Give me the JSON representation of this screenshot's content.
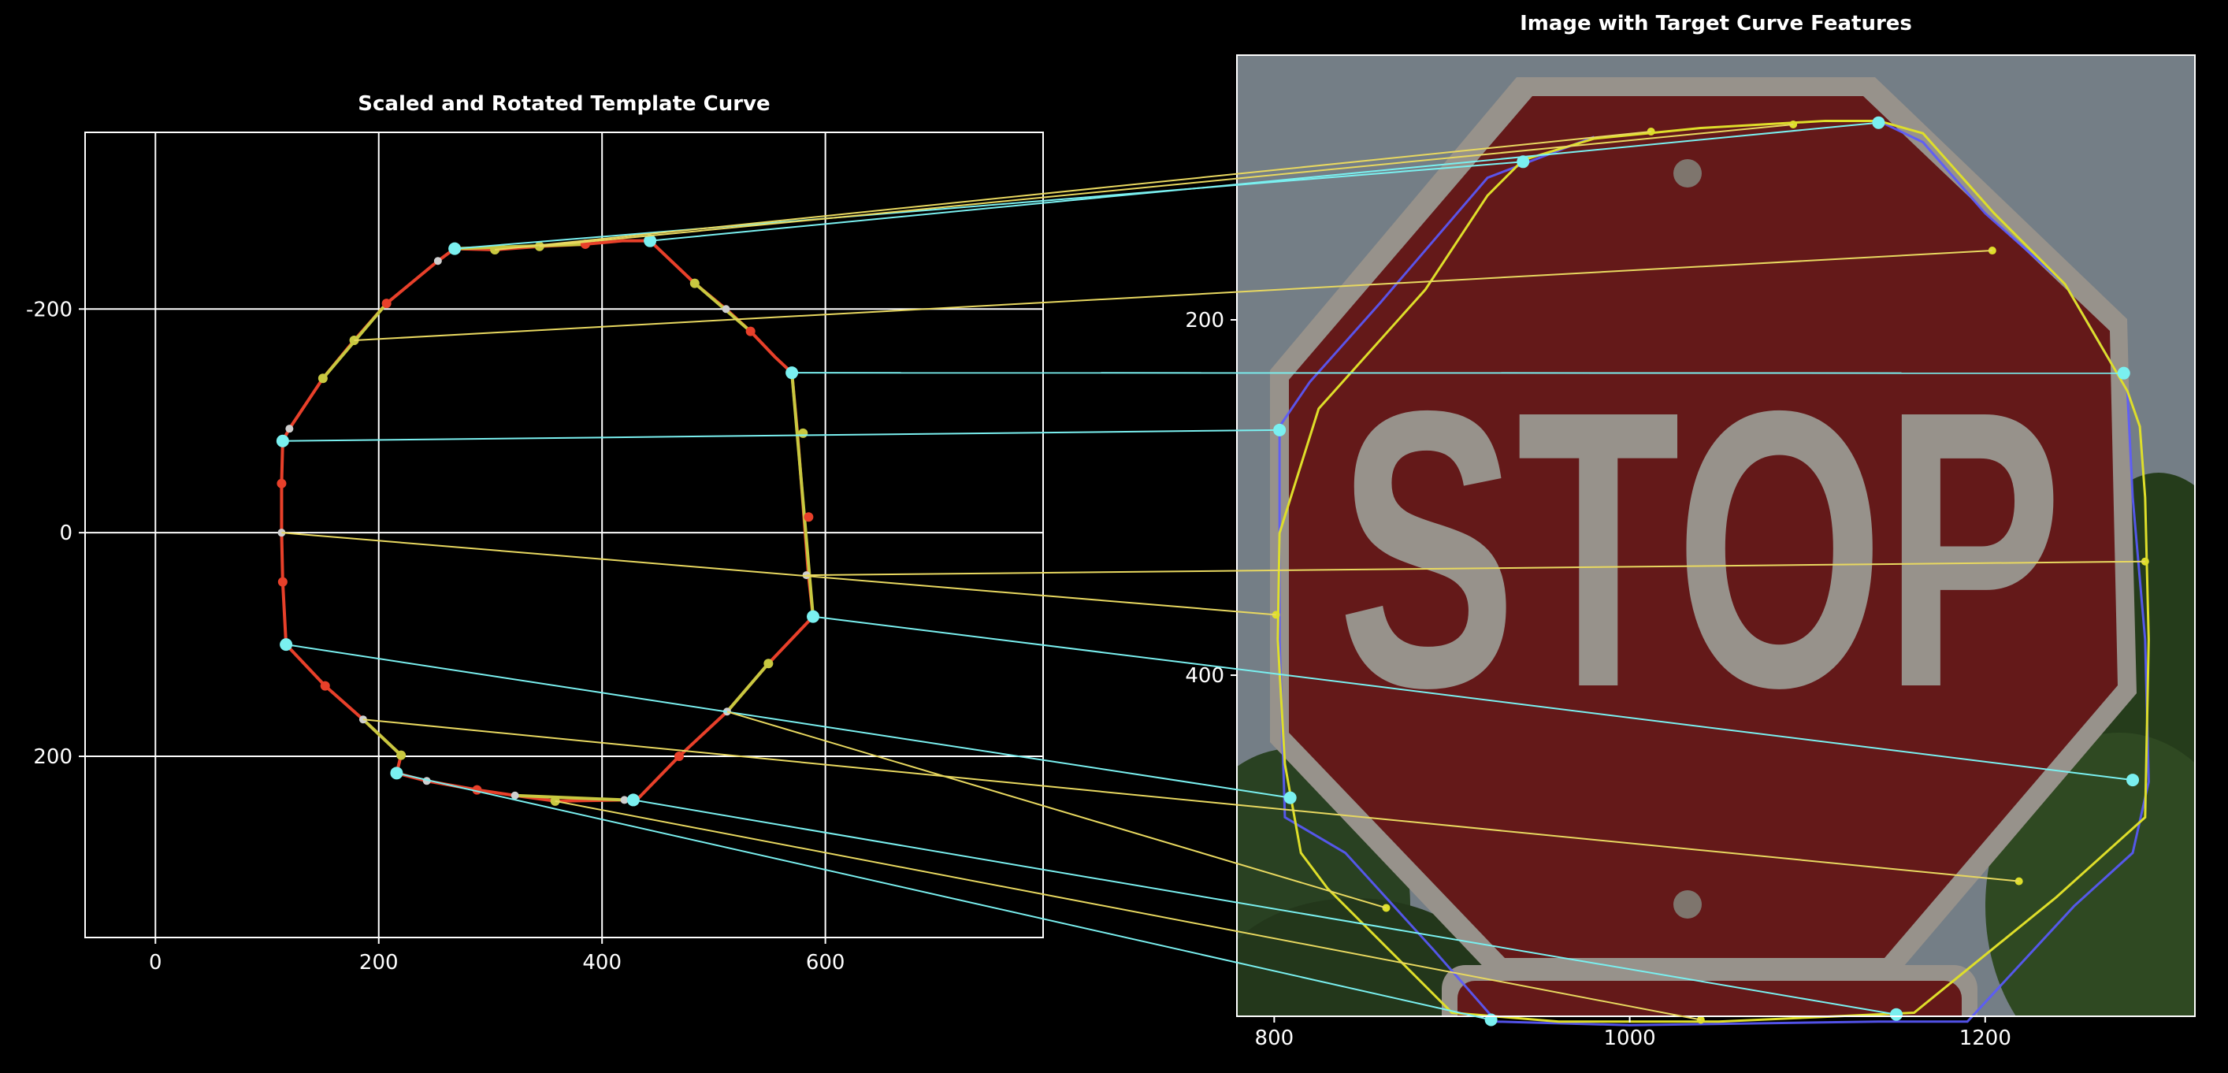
{
  "background": "#000000",
  "colors": {
    "template_curve": "#e8402a",
    "template_segment": "#c8c840",
    "target_curve_yellow": "#dede2a",
    "target_curve_blue": "#5a5aff",
    "match_line_anchor": "#7af0f0",
    "match_line_mid": "#e8d860",
    "grid": "#ffffff",
    "sign_red": "#7a1f1f",
    "sign_border": "#b9b2aa",
    "sky": "#8e9aa4",
    "foliage": "#2e4a22"
  },
  "chart_data": [
    {
      "type": "line",
      "title": "Scaled and Rotated Template Curve",
      "xlabel": "",
      "ylabel": "",
      "xlim": [
        -63,
        795
      ],
      "ylim": [
        362,
        -358
      ],
      "y_inverted": true,
      "grid": true,
      "xticks": [
        0,
        200,
        400,
        600
      ],
      "xtick_labels": [
        "0",
        "200",
        "400",
        "600"
      ],
      "yticks": [
        -200,
        0,
        200
      ],
      "ytick_labels": [
        "-200",
        "0",
        "200"
      ],
      "curve": [
        [
          268,
          -254
        ],
        [
          253,
          -243
        ],
        [
          207,
          -205
        ],
        [
          178,
          -172
        ],
        [
          150,
          -138
        ],
        [
          120,
          -93
        ],
        [
          114,
          -82
        ],
        [
          113,
          -44
        ],
        [
          113,
          0
        ],
        [
          114,
          44
        ],
        [
          117,
          100
        ],
        [
          152,
          137
        ],
        [
          186,
          167
        ],
        [
          220,
          199
        ],
        [
          216,
          215
        ],
        [
          243,
          222
        ],
        [
          288,
          230
        ],
        [
          322,
          235
        ],
        [
          358,
          240
        ],
        [
          420,
          239
        ],
        [
          432,
          238
        ],
        [
          469,
          200
        ],
        [
          512,
          160
        ],
        [
          549,
          117
        ],
        [
          589,
          75
        ],
        [
          585,
          40
        ],
        [
          583,
          14
        ],
        [
          579,
          -38
        ],
        [
          575,
          -89
        ],
        [
          570,
          -143
        ],
        [
          555,
          -157
        ],
        [
          533,
          -180
        ],
        [
          511,
          -200
        ],
        [
          483,
          -223
        ],
        [
          443,
          -261
        ],
        [
          418,
          -261
        ],
        [
          385,
          -258
        ],
        [
          344,
          -256
        ],
        [
          304,
          -253
        ],
        [
          268,
          -254
        ]
      ],
      "anchor_points": [
        [
          268,
          -254
        ],
        [
          443,
          -261
        ],
        [
          570,
          -143
        ],
        [
          114,
          -82
        ],
        [
          589,
          75
        ],
        [
          117,
          100
        ],
        [
          216,
          215
        ],
        [
          428,
          239
        ]
      ],
      "red_points": [
        [
          207,
          -205
        ],
        [
          113,
          -44
        ],
        [
          114,
          44
        ],
        [
          152,
          137
        ],
        [
          288,
          230
        ],
        [
          469,
          200
        ],
        [
          533,
          -180
        ],
        [
          585,
          -14
        ],
        [
          385,
          -258
        ]
      ],
      "yellow_points": [
        [
          178,
          -172
        ],
        [
          150,
          -138
        ],
        [
          220,
          199
        ],
        [
          358,
          240
        ],
        [
          549,
          117
        ],
        [
          580,
          -89
        ],
        [
          483,
          -223
        ],
        [
          304,
          -253
        ],
        [
          344,
          -256
        ]
      ],
      "gray_points": [
        [
          253,
          -243
        ],
        [
          120,
          -93
        ],
        [
          113,
          0
        ],
        [
          186,
          167
        ],
        [
          243,
          222
        ],
        [
          322,
          235
        ],
        [
          420,
          239
        ],
        [
          512,
          160
        ],
        [
          583,
          38
        ],
        [
          511,
          -200
        ]
      ]
    },
    {
      "type": "image",
      "title": "Image with Target Curve Features",
      "xlim": [
        779,
        1318
      ],
      "ylim": [
        592,
        51
      ],
      "y_inverted": true,
      "grid": false,
      "xticks": [
        800,
        1000,
        1200
      ],
      "xtick_labels": [
        "800",
        "1000",
        "1200"
      ],
      "yticks": [
        200,
        400
      ],
      "ytick_labels": [
        "200",
        "400"
      ],
      "sign_text": "STOP",
      "target_yellow": [
        [
          1140,
          88
        ],
        [
          1110,
          88
        ],
        [
          1040,
          92
        ],
        [
          980,
          98
        ],
        [
          940,
          110
        ],
        [
          920,
          130
        ],
        [
          885,
          183
        ],
        [
          825,
          250
        ],
        [
          803,
          320
        ],
        [
          802,
          380
        ],
        [
          806,
          450
        ],
        [
          815,
          500
        ],
        [
          830,
          520
        ],
        [
          865,
          555
        ],
        [
          900,
          590
        ],
        [
          960,
          595
        ],
        [
          1050,
          595
        ],
        [
          1160,
          590
        ],
        [
          1240,
          525
        ],
        [
          1290,
          480
        ],
        [
          1292,
          380
        ],
        [
          1290,
          300
        ],
        [
          1287,
          260
        ],
        [
          1280,
          240
        ],
        [
          1245,
          180
        ],
        [
          1205,
          140
        ],
        [
          1165,
          95
        ],
        [
          1140,
          88
        ]
      ],
      "target_blue": [
        [
          1140,
          88
        ],
        [
          1165,
          100
        ],
        [
          1200,
          140
        ],
        [
          1245,
          180
        ],
        [
          1280,
          240
        ],
        [
          1283,
          300
        ],
        [
          1290,
          380
        ],
        [
          1292,
          460
        ],
        [
          1283,
          500
        ],
        [
          1250,
          530
        ],
        [
          1190,
          595
        ],
        [
          1140,
          595
        ],
        [
          1000,
          597
        ],
        [
          925,
          595
        ],
        [
          890,
          555
        ],
        [
          840,
          500
        ],
        [
          806,
          480
        ],
        [
          803,
          380
        ],
        [
          803,
          260
        ],
        [
          820,
          235
        ],
        [
          860,
          190
        ],
        [
          920,
          120
        ],
        [
          980,
          97
        ]
      ],
      "anchor_points": [
        [
          940,
          111
        ],
        [
          1140,
          89
        ],
        [
          1278,
          230
        ],
        [
          803,
          262
        ],
        [
          1283,
          459
        ],
        [
          809,
          469
        ],
        [
          922,
          594
        ],
        [
          1150,
          591
        ]
      ],
      "mid_points": [
        [
          1204,
          161
        ],
        [
          1290,
          336
        ],
        [
          801,
          366
        ],
        [
          1219,
          516
        ],
        [
          863,
          531
        ],
        [
          1040,
          594
        ],
        [
          1012,
          94
        ],
        [
          1092,
          90
        ]
      ]
    }
  ],
  "correspondences": [
    {
      "template": [
        268,
        -254
      ],
      "target": [
        940,
        111
      ],
      "kind": "anchor"
    },
    {
      "template": [
        304,
        -253
      ],
      "target": [
        1012,
        94
      ],
      "kind": "mid"
    },
    {
      "template": [
        344,
        -256
      ],
      "target": [
        1092,
        90
      ],
      "kind": "mid"
    },
    {
      "template": [
        443,
        -261
      ],
      "target": [
        1140,
        89
      ],
      "kind": "anchor"
    },
    {
      "template": [
        178,
        -172
      ],
      "target": [
        1204,
        161
      ],
      "kind": "mid"
    },
    {
      "template": [
        570,
        -143
      ],
      "target": [
        1278,
        230
      ],
      "kind": "anchor"
    },
    {
      "template": [
        114,
        -82
      ],
      "target": [
        803,
        262
      ],
      "kind": "anchor"
    },
    {
      "template": [
        583,
        38
      ],
      "target": [
        1290,
        336
      ],
      "kind": "mid"
    },
    {
      "template": [
        113,
        0
      ],
      "target": [
        801,
        366
      ],
      "kind": "mid"
    },
    {
      "template": [
        589,
        75
      ],
      "target": [
        1283,
        459
      ],
      "kind": "anchor"
    },
    {
      "template": [
        117,
        100
      ],
      "target": [
        809,
        469
      ],
      "kind": "anchor"
    },
    {
      "template": [
        186,
        167
      ],
      "target": [
        1219,
        516
      ],
      "kind": "mid"
    },
    {
      "template": [
        512,
        160
      ],
      "target": [
        863,
        531
      ],
      "kind": "mid"
    },
    {
      "template": [
        216,
        215
      ],
      "target": [
        922,
        594
      ],
      "kind": "anchor"
    },
    {
      "template": [
        358,
        240
      ],
      "target": [
        1040,
        594
      ],
      "kind": "mid"
    },
    {
      "template": [
        428,
        239
      ],
      "target": [
        1150,
        591
      ],
      "kind": "anchor"
    }
  ]
}
